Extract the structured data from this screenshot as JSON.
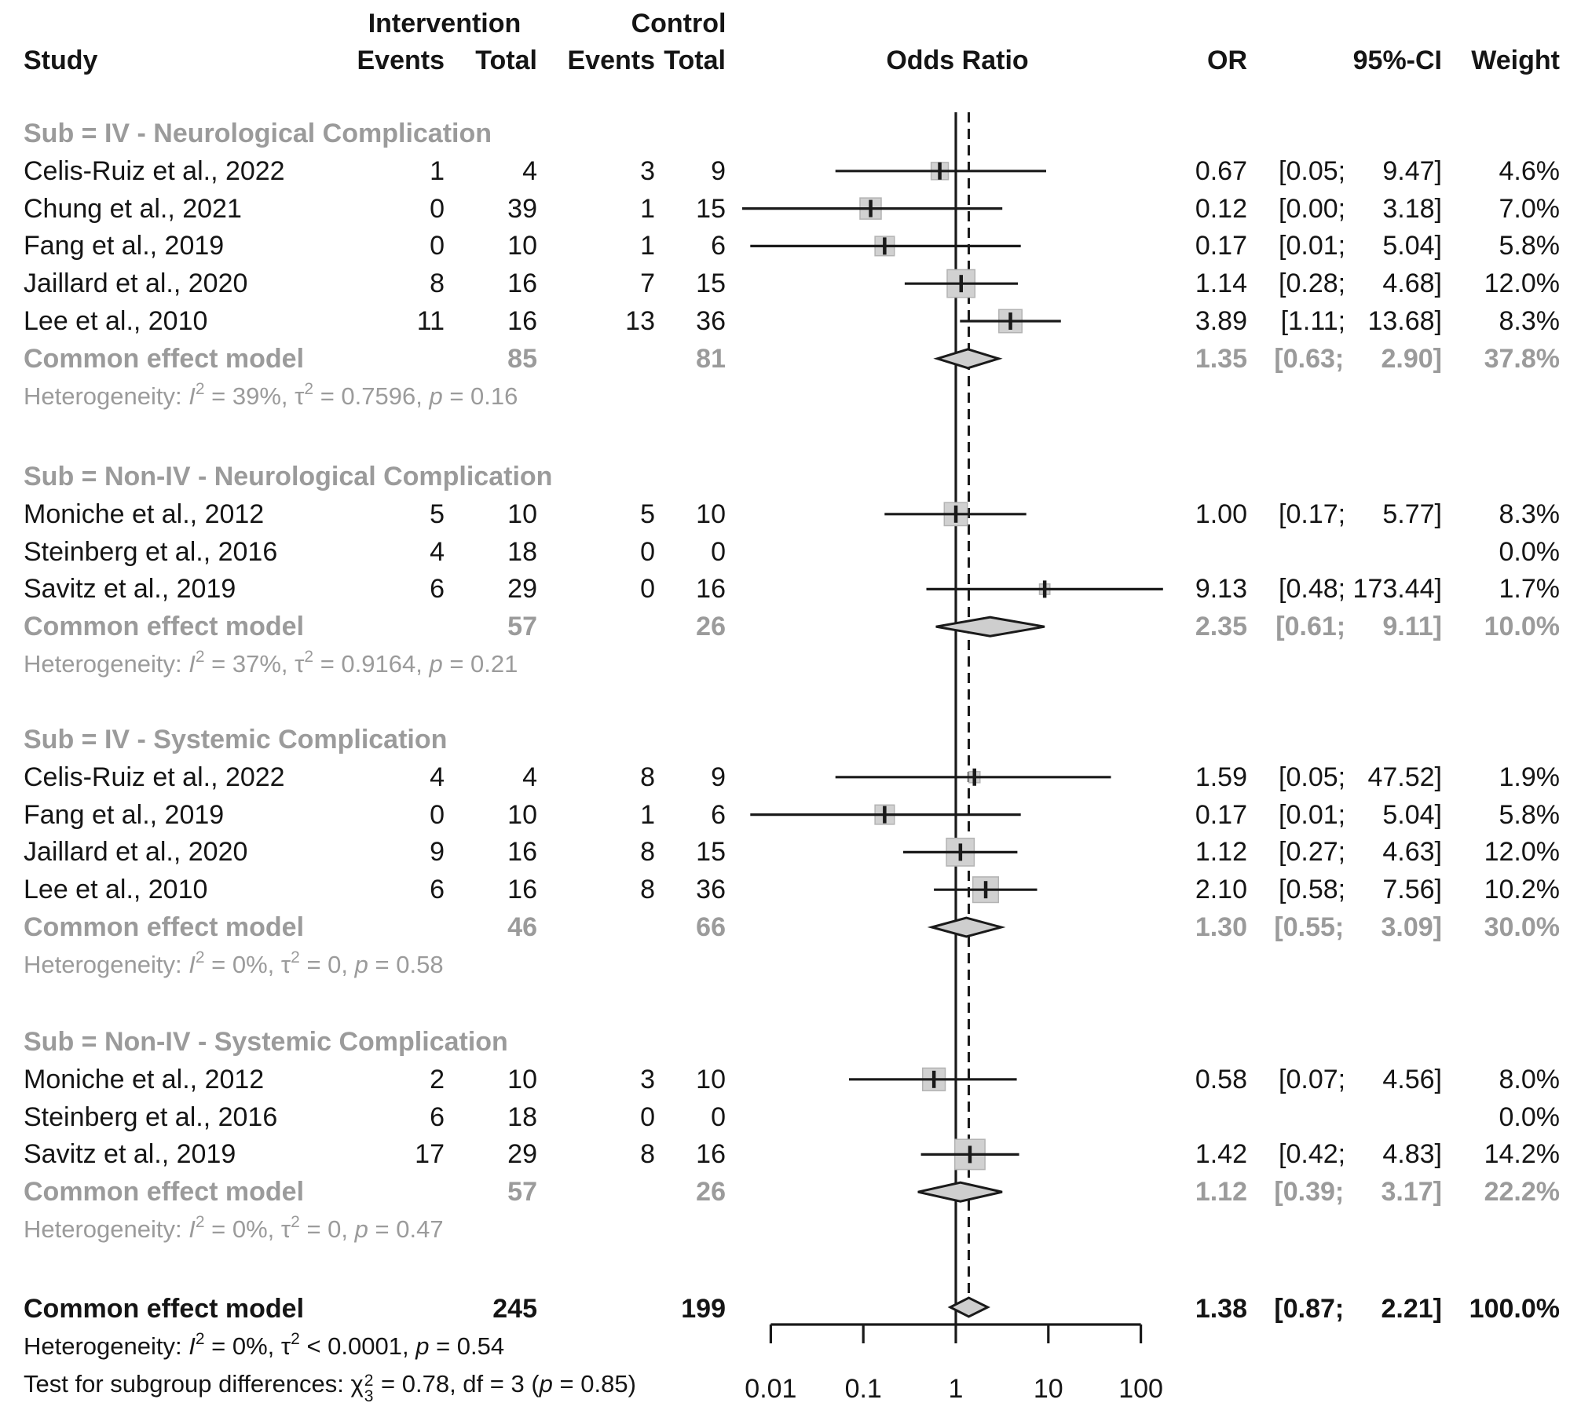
{
  "header": {
    "study": "Study",
    "intervention": "Intervention",
    "control": "Control",
    "events": "Events",
    "total": "Total",
    "odds_ratio": "Odds Ratio",
    "or": "OR",
    "ci": "95%-CI",
    "weight": "Weight"
  },
  "colors": {
    "text": "#151515",
    "gray": "#9b9b9b",
    "line": "#1a1a1a",
    "square_fill": "#d1d1d1",
    "square_border": "#b3b3b3",
    "diamond_fill": "#cecece",
    "diamond_border": "#1a1a1a"
  },
  "chart_data": {
    "type": "forest",
    "effect_measure": "Odds Ratio",
    "x_axis": {
      "scale": "log",
      "tick_values": [
        0.01,
        0.1,
        1,
        10,
        100
      ],
      "tick_labels": [
        "0.01",
        "0.1",
        "1",
        "10",
        "100"
      ]
    },
    "reference_value": 1,
    "groups": [
      {
        "label": "Sub = IV - Neurological Complication",
        "studies": [
          {
            "study": "Celis-Ruiz et al., 2022",
            "e1": "1",
            "t1": "4",
            "e2": "3",
            "t2": "9",
            "or": 0.67,
            "lo": 0.05,
            "hi": 9.47,
            "or_text": "0.67",
            "ci": "[0.05; 9.47]",
            "weight": 4.6,
            "weight_text": "4.6%"
          },
          {
            "study": "Chung et al., 2021",
            "e1": "0",
            "t1": "39",
            "e2": "1",
            "t2": "15",
            "or": 0.12,
            "lo": 0.0,
            "hi": 3.18,
            "plot_lo": 0.0001,
            "or_text": "0.12",
            "ci": "[0.00; 3.18]",
            "weight": 7.0,
            "weight_text": "7.0%"
          },
          {
            "study": "Fang et al., 2019",
            "e1": "0",
            "t1": "10",
            "e2": "1",
            "t2": "6",
            "or": 0.17,
            "lo": 0.01,
            "hi": 5.04,
            "plot_lo": 0.006,
            "or_text": "0.17",
            "ci": "[0.01; 5.04]",
            "weight": 5.8,
            "weight_text": "5.8%"
          },
          {
            "study": "Jaillard et al., 2020",
            "e1": "8",
            "t1": "16",
            "e2": "7",
            "t2": "15",
            "or": 1.14,
            "lo": 0.28,
            "hi": 4.68,
            "or_text": "1.14",
            "ci": "[0.28; 4.68]",
            "weight": 12.0,
            "weight_text": "12.0%"
          },
          {
            "study": "Lee et al., 2010",
            "e1": "11",
            "t1": "16",
            "e2": "13",
            "t2": "36",
            "or": 3.89,
            "lo": 1.11,
            "hi": 13.68,
            "or_text": "3.89",
            "ci": "[1.11; 13.68]",
            "weight": 8.3,
            "weight_text": "8.3%"
          }
        ],
        "common": {
          "label": "Common effect model",
          "t1": "85",
          "t2": "81",
          "or": 1.35,
          "lo": 0.63,
          "hi": 2.9,
          "or_text": "1.35",
          "ci": "[0.63; 2.90]",
          "weight_text": "37.8%"
        },
        "het_parts": [
          [
            "Heterogeneity: ",
            "n"
          ],
          [
            "I",
            "i"
          ],
          [
            "2",
            "sup"
          ],
          [
            " = 39%, τ",
            "n"
          ],
          [
            "2",
            "sup"
          ],
          [
            " = 0.7596, ",
            "n"
          ],
          [
            "p",
            "i"
          ],
          [
            " = 0.16",
            "n"
          ]
        ]
      },
      {
        "label": "Sub = Non-IV - Neurological Complication",
        "studies": [
          {
            "study": "Moniche et al., 2012",
            "e1": "5",
            "t1": "10",
            "e2": "5",
            "t2": "10",
            "or": 1.0,
            "lo": 0.17,
            "hi": 5.77,
            "or_text": "1.00",
            "ci": "[0.17; 5.77]",
            "weight": 8.3,
            "weight_text": "8.3%"
          },
          {
            "study": "Steinberg et al., 2016",
            "e1": "4",
            "t1": "18",
            "e2": "0",
            "t2": "0",
            "or": null,
            "lo": null,
            "hi": null,
            "or_text": "",
            "ci": "",
            "weight": 0,
            "weight_text": "0.0%"
          },
          {
            "study": "Savitz et al., 2019",
            "e1": "6",
            "t1": "29",
            "e2": "0",
            "t2": "16",
            "or": 9.13,
            "lo": 0.48,
            "hi": 173.44,
            "or_text": "9.13",
            "ci": "[0.48; 173.44]",
            "weight": 1.7,
            "weight_text": "1.7%"
          }
        ],
        "common": {
          "label": "Common effect model",
          "t1": "57",
          "t2": "26",
          "or": 2.35,
          "lo": 0.61,
          "hi": 9.11,
          "or_text": "2.35",
          "ci": "[0.61; 9.11]",
          "weight_text": "10.0%"
        },
        "het_parts": [
          [
            "Heterogeneity: ",
            "n"
          ],
          [
            "I",
            "i"
          ],
          [
            "2",
            "sup"
          ],
          [
            " = 37%, τ",
            "n"
          ],
          [
            "2",
            "sup"
          ],
          [
            " = 0.9164, ",
            "n"
          ],
          [
            "p",
            "i"
          ],
          [
            " = 0.21",
            "n"
          ]
        ]
      },
      {
        "label": "Sub = IV - Systemic Complication",
        "studies": [
          {
            "study": "Celis-Ruiz et al., 2022",
            "e1": "4",
            "t1": "4",
            "e2": "8",
            "t2": "9",
            "or": 1.59,
            "lo": 0.05,
            "hi": 47.52,
            "or_text": "1.59",
            "ci": "[0.05; 47.52]",
            "weight": 1.9,
            "weight_text": "1.9%"
          },
          {
            "study": "Fang et al., 2019",
            "e1": "0",
            "t1": "10",
            "e2": "1",
            "t2": "6",
            "or": 0.17,
            "lo": 0.01,
            "hi": 5.04,
            "plot_lo": 0.006,
            "or_text": "0.17",
            "ci": "[0.01; 5.04]",
            "weight": 5.8,
            "weight_text": "5.8%"
          },
          {
            "study": "Jaillard et al., 2020",
            "e1": "9",
            "t1": "16",
            "e2": "8",
            "t2": "15",
            "or": 1.12,
            "lo": 0.27,
            "hi": 4.63,
            "or_text": "1.12",
            "ci": "[0.27; 4.63]",
            "weight": 12.0,
            "weight_text": "12.0%"
          },
          {
            "study": "Lee et al., 2010",
            "e1": "6",
            "t1": "16",
            "e2": "8",
            "t2": "36",
            "or": 2.1,
            "lo": 0.58,
            "hi": 7.56,
            "or_text": "2.10",
            "ci": "[0.58; 7.56]",
            "weight": 10.2,
            "weight_text": "10.2%"
          }
        ],
        "common": {
          "label": "Common effect model",
          "t1": "46",
          "t2": "66",
          "or": 1.3,
          "lo": 0.55,
          "hi": 3.09,
          "or_text": "1.30",
          "ci": "[0.55; 3.09]",
          "weight_text": "30.0%"
        },
        "het_parts": [
          [
            "Heterogeneity: ",
            "n"
          ],
          [
            "I",
            "i"
          ],
          [
            "2",
            "sup"
          ],
          [
            " = 0%, τ",
            "n"
          ],
          [
            "2",
            "sup"
          ],
          [
            " = 0, ",
            "n"
          ],
          [
            "p",
            "i"
          ],
          [
            " = 0.58",
            "n"
          ]
        ]
      },
      {
        "label": "Sub = Non-IV - Systemic Complication",
        "studies": [
          {
            "study": "Moniche et al., 2012",
            "e1": "2",
            "t1": "10",
            "e2": "3",
            "t2": "10",
            "or": 0.58,
            "lo": 0.07,
            "hi": 4.56,
            "or_text": "0.58",
            "ci": "[0.07; 4.56]",
            "weight": 8.0,
            "weight_text": "8.0%"
          },
          {
            "study": "Steinberg et al., 2016",
            "e1": "6",
            "t1": "18",
            "e2": "0",
            "t2": "0",
            "or": null,
            "lo": null,
            "hi": null,
            "or_text": "",
            "ci": "",
            "weight": 0,
            "weight_text": "0.0%"
          },
          {
            "study": "Savitz et al., 2019",
            "e1": "17",
            "t1": "29",
            "e2": "8",
            "t2": "16",
            "or": 1.42,
            "lo": 0.42,
            "hi": 4.83,
            "or_text": "1.42",
            "ci": "[0.42; 4.83]",
            "weight": 14.2,
            "weight_text": "14.2%"
          }
        ],
        "common": {
          "label": "Common effect model",
          "t1": "57",
          "t2": "26",
          "or": 1.12,
          "lo": 0.39,
          "hi": 3.17,
          "or_text": "1.12",
          "ci": "[0.39; 3.17]",
          "weight_text": "22.2%"
        },
        "het_parts": [
          [
            "Heterogeneity: ",
            "n"
          ],
          [
            "I",
            "i"
          ],
          [
            "2",
            "sup"
          ],
          [
            " = 0%, τ",
            "n"
          ],
          [
            "2",
            "sup"
          ],
          [
            " = 0, ",
            "n"
          ],
          [
            "p",
            "i"
          ],
          [
            " = 0.47",
            "n"
          ]
        ]
      }
    ],
    "overall": {
      "label": "Common effect model",
      "t1": "245",
      "t2": "199",
      "or": 1.38,
      "lo": 0.87,
      "hi": 2.21,
      "or_text": "1.38",
      "ci": "[0.87; 2.21]",
      "weight_text": "100.0%"
    },
    "overall_het_parts": [
      [
        "Heterogeneity: ",
        "n"
      ],
      [
        "I",
        "i"
      ],
      [
        "2",
        "sup"
      ],
      [
        " = 0%, τ",
        "n"
      ],
      [
        "2",
        "sup"
      ],
      [
        " < 0.0001, ",
        "n"
      ],
      [
        "p",
        "i"
      ],
      [
        " = 0.54",
        "n"
      ]
    ],
    "subgroup_test_parts": [
      [
        "Test for subgroup differences: ",
        "n"
      ],
      [
        "χ",
        "n"
      ],
      [
        "2|3",
        "supsub"
      ],
      [
        " = 0.78, df = 3 (",
        "n"
      ],
      [
        "p",
        "i"
      ],
      [
        " = 0.85)",
        "n"
      ]
    ]
  }
}
